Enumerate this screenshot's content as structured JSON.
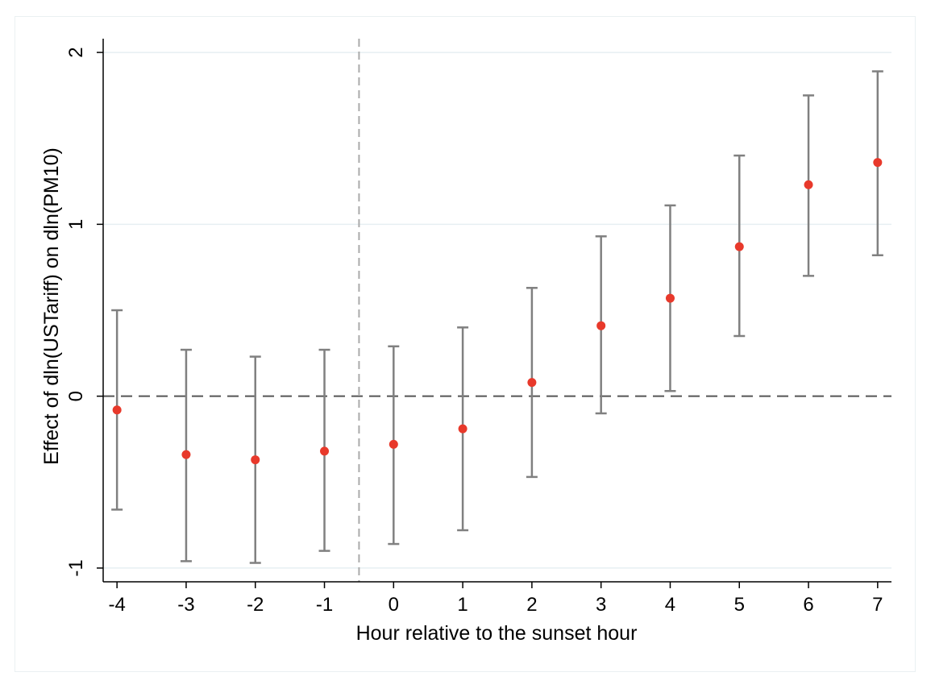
{
  "chart_data": {
    "type": "scatter",
    "title": "",
    "xlabel": "Hour relative to the sunset hour",
    "ylabel": "Effect of dln(USTariff) on dln(PM10)",
    "xlim": [
      -4.2,
      7.2
    ],
    "ylim": [
      -1.08,
      2.08
    ],
    "x_ticks": [
      -4,
      -3,
      -2,
      -1,
      0,
      1,
      2,
      3,
      4,
      5,
      6,
      7
    ],
    "y_ticks": [
      -1,
      0,
      1,
      2
    ],
    "grid": "horizontal",
    "reference_lines": {
      "horizontal_y": 0,
      "vertical_x": -0.5
    },
    "series": [
      {
        "x": [
          -4,
          -3,
          -2,
          -1,
          0,
          1,
          2,
          3,
          4,
          5,
          6,
          7
        ],
        "y": [
          -0.08,
          -0.34,
          -0.37,
          -0.32,
          -0.28,
          -0.19,
          0.08,
          0.41,
          0.57,
          0.87,
          1.23,
          1.36
        ],
        "ci_lower": [
          -0.66,
          -0.96,
          -0.97,
          -0.9,
          -0.86,
          -0.78,
          -0.47,
          -0.1,
          0.03,
          0.35,
          0.7,
          0.82
        ],
        "ci_upper": [
          0.5,
          0.27,
          0.23,
          0.27,
          0.29,
          0.4,
          0.63,
          0.93,
          1.11,
          1.4,
          1.75,
          1.89
        ]
      }
    ],
    "colors": {
      "point": "#e8392b",
      "error_bar": "#808080",
      "grid": "#e6eff2",
      "zero_line": "#555555",
      "vertical_line": "#aaaaaa",
      "axis": "#000000"
    }
  }
}
